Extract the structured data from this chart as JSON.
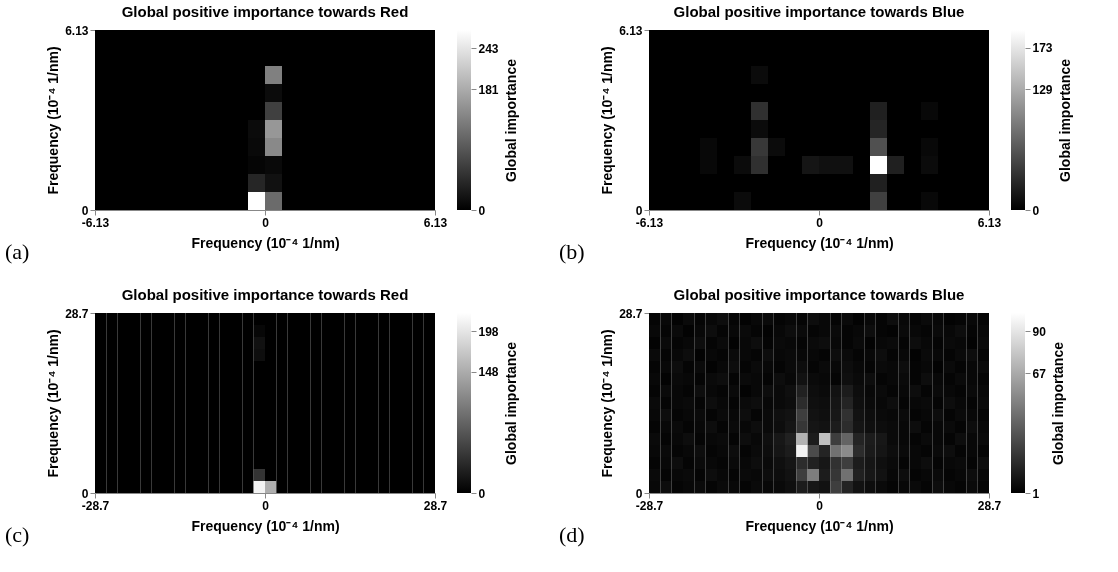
{
  "chart_data": [
    {
      "type": "heatmap",
      "title": "Global positive importance towards Red",
      "xlabel": "Frequency (10⁻⁴ 1/nm)",
      "ylabel": "Frequency (10⁻⁴ 1/nm)",
      "clabel": "Global importance",
      "annotations": [
        "(a)"
      ],
      "xlim": [
        -6.13,
        6.13
      ],
      "xticks": [
        -6.13,
        0,
        6.13
      ],
      "ylim": [
        0,
        6.13
      ],
      "yticks": [
        0,
        6.13
      ],
      "clim": [
        0,
        270
      ],
      "cticks": [
        0,
        181,
        243
      ],
      "x": [
        -5.8235,
        -5.2105,
        -4.5975,
        -3.9845,
        -3.3715,
        -2.7585,
        -2.1455,
        -1.5325,
        -0.9195,
        -0.3065,
        0.3065,
        0.9195,
        1.5325,
        2.1455,
        2.7585,
        3.3715,
        3.9845,
        4.5975,
        5.2105,
        5.8235
      ],
      "y": [
        5.8235,
        5.2105,
        4.5975,
        3.9845,
        3.3715,
        2.7585,
        2.1455,
        1.5325,
        0.9195,
        0.3065
      ],
      "cells": [
        [
          0,
          0,
          0,
          0,
          0,
          0,
          0,
          0,
          0,
          0,
          0,
          0,
          0,
          0,
          0,
          0,
          0,
          0,
          0,
          0
        ],
        [
          0,
          0,
          0,
          0,
          0,
          0,
          0,
          0,
          0,
          0,
          0,
          0,
          0,
          0,
          0,
          0,
          0,
          0,
          0,
          0
        ],
        [
          0,
          0,
          0,
          0,
          0,
          0,
          0,
          0,
          0,
          0,
          135,
          0,
          0,
          0,
          0,
          0,
          0,
          0,
          0,
          0
        ],
        [
          0,
          0,
          0,
          0,
          0,
          0,
          0,
          0,
          0,
          0,
          12,
          0,
          0,
          0,
          0,
          0,
          0,
          0,
          0,
          0
        ],
        [
          0,
          0,
          0,
          0,
          0,
          0,
          0,
          0,
          0,
          0,
          68,
          0,
          0,
          0,
          0,
          0,
          0,
          0,
          0,
          0
        ],
        [
          0,
          0,
          0,
          0,
          0,
          0,
          0,
          0,
          0,
          12,
          160,
          0,
          0,
          0,
          0,
          0,
          0,
          0,
          0,
          0
        ],
        [
          0,
          0,
          0,
          0,
          0,
          0,
          0,
          0,
          0,
          10,
          145,
          0,
          0,
          0,
          0,
          0,
          0,
          0,
          0,
          0
        ],
        [
          0,
          0,
          0,
          0,
          0,
          0,
          0,
          0,
          0,
          5,
          10,
          0,
          0,
          0,
          0,
          0,
          0,
          0,
          0,
          0
        ],
        [
          0,
          0,
          0,
          0,
          0,
          0,
          0,
          0,
          0,
          40,
          18,
          0,
          0,
          0,
          0,
          0,
          0,
          0,
          0,
          0
        ],
        [
          0,
          0,
          0,
          0,
          0,
          0,
          0,
          0,
          0,
          270,
          113,
          0,
          0,
          0,
          0,
          0,
          0,
          0,
          0,
          0
        ]
      ]
    },
    {
      "type": "heatmap",
      "title": "Global positive importance towards Blue",
      "xlabel": "Frequency (10⁻⁴ 1/nm)",
      "ylabel": "Frequency (10⁻⁴ 1/nm)",
      "clabel": "Global importance",
      "annotations": [
        "(b)"
      ],
      "xlim": [
        -6.13,
        6.13
      ],
      "xticks": [
        -6.13,
        0,
        6.13
      ],
      "ylim": [
        0,
        6.13
      ],
      "yticks": [
        0,
        6.13
      ],
      "clim": [
        0,
        192
      ],
      "cticks": [
        0,
        129,
        173
      ],
      "x": [
        -5.8235,
        -5.2105,
        -4.5975,
        -3.9845,
        -3.3715,
        -2.7585,
        -2.1455,
        -1.5325,
        -0.9195,
        -0.3065,
        0.3065,
        0.9195,
        1.5325,
        2.1455,
        2.7585,
        3.3715,
        3.9845,
        4.5975,
        5.2105,
        5.8235
      ],
      "y": [
        5.8235,
        5.2105,
        4.5975,
        3.9845,
        3.3715,
        2.7585,
        2.1455,
        1.5325,
        0.9195,
        0.3065
      ],
      "cells": [
        [
          0,
          0,
          0,
          0,
          0,
          0,
          0,
          0,
          0,
          0,
          0,
          0,
          0,
          0,
          0,
          0,
          0,
          0,
          0,
          0
        ],
        [
          0,
          0,
          0,
          0,
          0,
          0,
          0,
          0,
          0,
          0,
          0,
          0,
          0,
          0,
          0,
          0,
          0,
          0,
          0,
          0
        ],
        [
          0,
          0,
          0,
          0,
          0,
          0,
          8,
          0,
          0,
          0,
          0,
          0,
          0,
          0,
          0,
          0,
          0,
          0,
          0,
          0
        ],
        [
          0,
          0,
          0,
          0,
          0,
          0,
          0,
          0,
          0,
          0,
          0,
          0,
          0,
          0,
          0,
          0,
          0,
          0,
          0,
          0
        ],
        [
          0,
          0,
          0,
          0,
          0,
          0,
          36,
          0,
          0,
          0,
          0,
          0,
          0,
          24,
          0,
          0,
          6,
          0,
          0,
          0
        ],
        [
          0,
          0,
          0,
          0,
          0,
          0,
          8,
          0,
          0,
          0,
          0,
          0,
          0,
          28,
          0,
          0,
          0,
          0,
          0,
          0
        ],
        [
          0,
          0,
          0,
          6,
          0,
          0,
          42,
          8,
          0,
          0,
          0,
          0,
          0,
          60,
          0,
          0,
          6,
          0,
          0,
          0
        ],
        [
          0,
          0,
          0,
          6,
          0,
          8,
          36,
          0,
          0,
          16,
          12,
          12,
          0,
          192,
          24,
          0,
          8,
          0,
          0,
          0
        ],
        [
          0,
          0,
          0,
          0,
          0,
          0,
          0,
          0,
          0,
          0,
          0,
          0,
          0,
          24,
          0,
          0,
          0,
          0,
          0,
          0
        ],
        [
          0,
          0,
          0,
          0,
          0,
          8,
          0,
          0,
          0,
          0,
          0,
          0,
          0,
          48,
          0,
          0,
          6,
          0,
          0,
          0
        ]
      ]
    },
    {
      "type": "heatmap",
      "title": "Global positive importance towards Red",
      "xlabel": "Frequency (10⁻⁴ 1/nm)",
      "ylabel": "Frequency (10⁻⁴ 1/nm)",
      "clabel": "Global importance",
      "annotations": [
        "(c)"
      ],
      "xlim": [
        -28.7,
        28.7
      ],
      "xticks": [
        -28.7,
        0,
        28.7
      ],
      "ylim": [
        0,
        28.7
      ],
      "yticks": [
        0,
        28.7
      ],
      "clim": [
        0,
        220
      ],
      "cticks": [
        0,
        148,
        198
      ],
      "x": [
        -27.743,
        -25.83,
        -23.917,
        -22.003,
        -20.09,
        -18.177,
        -16.263,
        -14.35,
        -12.437,
        -10.523,
        -8.61,
        -6.697,
        -4.783,
        -2.87,
        -0.957,
        0.957,
        2.87,
        4.783,
        6.697,
        8.61,
        10.523,
        12.437,
        14.35,
        16.263,
        18.177,
        20.09,
        22.003,
        23.917,
        25.83,
        27.743
      ],
      "y": [
        27.743,
        25.83,
        23.917,
        22.003,
        20.09,
        18.177,
        16.263,
        14.35,
        12.437,
        10.523,
        8.61,
        6.697,
        4.783,
        2.87,
        0.957
      ],
      "cells": [
        [
          0,
          0,
          0,
          0,
          0,
          0,
          0,
          0,
          0,
          0,
          0,
          0,
          0,
          0,
          0,
          0,
          0,
          0,
          0,
          0,
          0,
          0,
          0,
          0,
          0,
          0,
          0,
          0,
          0,
          0
        ],
        [
          0,
          0,
          0,
          0,
          0,
          0,
          0,
          0,
          0,
          0,
          0,
          0,
          0,
          0,
          6,
          0,
          0,
          0,
          0,
          0,
          0,
          0,
          0,
          0,
          0,
          0,
          0,
          0,
          0,
          0
        ],
        [
          0,
          0,
          0,
          0,
          0,
          0,
          0,
          0,
          0,
          0,
          0,
          0,
          0,
          0,
          15,
          0,
          0,
          0,
          0,
          0,
          0,
          0,
          0,
          0,
          0,
          0,
          0,
          0,
          0,
          0
        ],
        [
          0,
          0,
          0,
          0,
          0,
          0,
          0,
          0,
          0,
          0,
          0,
          0,
          0,
          0,
          12,
          0,
          0,
          0,
          0,
          0,
          0,
          0,
          0,
          0,
          0,
          0,
          0,
          0,
          0,
          0
        ],
        [
          0,
          0,
          0,
          0,
          0,
          0,
          0,
          0,
          0,
          0,
          0,
          0,
          0,
          0,
          0,
          0,
          0,
          0,
          0,
          0,
          0,
          0,
          0,
          0,
          0,
          0,
          0,
          0,
          0,
          0
        ],
        [
          0,
          0,
          0,
          0,
          0,
          0,
          0,
          0,
          0,
          0,
          0,
          0,
          0,
          0,
          0,
          0,
          0,
          0,
          0,
          0,
          0,
          0,
          0,
          0,
          0,
          0,
          0,
          0,
          0,
          0
        ],
        [
          0,
          0,
          0,
          0,
          0,
          0,
          0,
          0,
          0,
          0,
          0,
          0,
          0,
          0,
          0,
          0,
          0,
          0,
          0,
          0,
          0,
          0,
          0,
          0,
          0,
          0,
          0,
          0,
          0,
          0
        ],
        [
          0,
          0,
          0,
          0,
          0,
          0,
          0,
          0,
          0,
          0,
          0,
          0,
          0,
          0,
          0,
          0,
          0,
          0,
          0,
          0,
          0,
          0,
          0,
          0,
          0,
          0,
          0,
          0,
          0,
          0
        ],
        [
          0,
          0,
          0,
          0,
          0,
          0,
          0,
          0,
          0,
          0,
          0,
          0,
          0,
          0,
          0,
          0,
          0,
          0,
          0,
          0,
          0,
          0,
          0,
          0,
          0,
          0,
          0,
          0,
          0,
          0
        ],
        [
          0,
          0,
          0,
          0,
          0,
          0,
          0,
          0,
          0,
          0,
          0,
          0,
          0,
          0,
          0,
          0,
          0,
          0,
          0,
          0,
          0,
          0,
          0,
          0,
          0,
          0,
          0,
          0,
          0,
          0
        ],
        [
          0,
          0,
          0,
          0,
          0,
          0,
          0,
          0,
          0,
          0,
          0,
          0,
          0,
          0,
          0,
          0,
          0,
          0,
          0,
          0,
          0,
          0,
          0,
          0,
          0,
          0,
          0,
          0,
          0,
          0
        ],
        [
          0,
          0,
          0,
          0,
          0,
          0,
          0,
          0,
          0,
          0,
          0,
          0,
          0,
          0,
          0,
          0,
          0,
          0,
          0,
          0,
          0,
          0,
          0,
          0,
          0,
          0,
          0,
          0,
          0,
          0
        ],
        [
          0,
          0,
          0,
          0,
          0,
          0,
          0,
          0,
          0,
          0,
          0,
          0,
          0,
          0,
          0,
          0,
          0,
          0,
          0,
          0,
          0,
          0,
          0,
          0,
          0,
          0,
          0,
          0,
          0,
          0
        ],
        [
          0,
          0,
          0,
          0,
          0,
          0,
          0,
          0,
          0,
          0,
          0,
          0,
          0,
          0,
          45,
          0,
          0,
          0,
          0,
          0,
          0,
          0,
          0,
          0,
          0,
          0,
          0,
          0,
          0,
          0
        ],
        [
          0,
          0,
          0,
          0,
          0,
          0,
          0,
          0,
          0,
          0,
          0,
          0,
          0,
          0,
          210,
          150,
          0,
          0,
          0,
          0,
          0,
          0,
          0,
          0,
          0,
          0,
          0,
          0,
          0,
          0
        ]
      ]
    },
    {
      "type": "heatmap",
      "title": "Global positive importance towards Blue",
      "xlabel": "Frequency (10⁻⁴ 1/nm)",
      "ylabel": "Frequency (10⁻⁴ 1/nm)",
      "clabel": "Global importance",
      "annotations": [
        "(d)"
      ],
      "xlim": [
        -28.7,
        28.7
      ],
      "xticks": [
        -28.7,
        0,
        28.7
      ],
      "ylim": [
        0,
        28.7
      ],
      "yticks": [
        0,
        28.7
      ],
      "clim": [
        1,
        100
      ],
      "cticks": [
        1,
        67,
        90
      ],
      "x": [
        -27.743,
        -25.83,
        -23.917,
        -22.003,
        -20.09,
        -18.177,
        -16.263,
        -14.35,
        -12.437,
        -10.523,
        -8.61,
        -6.697,
        -4.783,
        -2.87,
        -0.957,
        0.957,
        2.87,
        4.783,
        6.697,
        8.61,
        10.523,
        12.437,
        14.35,
        16.263,
        18.177,
        20.09,
        22.003,
        23.917,
        25.83,
        27.743
      ],
      "y": [
        27.743,
        25.83,
        23.917,
        22.003,
        20.09,
        18.177,
        16.263,
        14.35,
        12.437,
        10.523,
        8.61,
        6.697,
        4.783,
        2.87,
        0.957
      ],
      "cells": [
        [
          3,
          4,
          2,
          5,
          3,
          4,
          6,
          3,
          2,
          4,
          5,
          3,
          4,
          3,
          6,
          4,
          3,
          5,
          2,
          4,
          3,
          6,
          4,
          3,
          5,
          4,
          2,
          3,
          4,
          3
        ],
        [
          4,
          3,
          5,
          2,
          4,
          6,
          3,
          4,
          5,
          3,
          2,
          4,
          6,
          5,
          3,
          4,
          5,
          3,
          4,
          6,
          3,
          2,
          5,
          4,
          3,
          5,
          4,
          6,
          3,
          4
        ],
        [
          2,
          5,
          3,
          4,
          6,
          3,
          5,
          2,
          4,
          6,
          3,
          5,
          4,
          3,
          5,
          6,
          4,
          3,
          5,
          2,
          4,
          5,
          3,
          6,
          4,
          3,
          5,
          4,
          2,
          5
        ],
        [
          5,
          3,
          4,
          6,
          2,
          4,
          3,
          5,
          4,
          3,
          6,
          4,
          5,
          4,
          4,
          3,
          6,
          5,
          3,
          4,
          6,
          3,
          4,
          2,
          5,
          4,
          3,
          5,
          6,
          3
        ],
        [
          3,
          4,
          6,
          3,
          5,
          2,
          4,
          6,
          3,
          5,
          4,
          3,
          5,
          6,
          3,
          5,
          4,
          6,
          4,
          3,
          5,
          4,
          6,
          3,
          4,
          2,
          5,
          3,
          4,
          5
        ],
        [
          4,
          2,
          5,
          4,
          3,
          5,
          6,
          3,
          5,
          4,
          3,
          6,
          4,
          8,
          5,
          4,
          3,
          7,
          5,
          6,
          3,
          4,
          5,
          3,
          6,
          4,
          3,
          5,
          4,
          3
        ],
        [
          3,
          5,
          4,
          3,
          6,
          4,
          3,
          5,
          2,
          4,
          6,
          5,
          7,
          14,
          6,
          5,
          8,
          12,
          6,
          4,
          5,
          3,
          4,
          6,
          3,
          5,
          4,
          3,
          5,
          4
        ],
        [
          5,
          3,
          4,
          5,
          3,
          6,
          4,
          3,
          5,
          6,
          4,
          5,
          6,
          18,
          7,
          6,
          9,
          15,
          7,
          5,
          4,
          6,
          3,
          4,
          5,
          3,
          6,
          4,
          3,
          5
        ],
        [
          4,
          6,
          3,
          4,
          5,
          3,
          5,
          4,
          6,
          3,
          5,
          7,
          8,
          25,
          8,
          7,
          10,
          20,
          8,
          6,
          5,
          4,
          5,
          3,
          4,
          6,
          3,
          5,
          4,
          3
        ],
        [
          3,
          4,
          5,
          3,
          4,
          6,
          3,
          5,
          4,
          6,
          5,
          6,
          9,
          22,
          9,
          8,
          12,
          18,
          9,
          7,
          6,
          5,
          4,
          6,
          3,
          4,
          5,
          3,
          6,
          4
        ],
        [
          5,
          3,
          4,
          6,
          3,
          4,
          5,
          3,
          6,
          4,
          7,
          10,
          14,
          70,
          12,
          75,
          25,
          40,
          15,
          12,
          10,
          5,
          4,
          3,
          5,
          4,
          3,
          6,
          4,
          5
        ],
        [
          4,
          5,
          3,
          4,
          6,
          3,
          4,
          6,
          3,
          5,
          6,
          9,
          12,
          95,
          30,
          15,
          45,
          55,
          18,
          11,
          9,
          6,
          5,
          4,
          3,
          5,
          6,
          3,
          4,
          3
        ],
        [
          3,
          4,
          6,
          3,
          5,
          4,
          3,
          5,
          4,
          6,
          5,
          7,
          9,
          18,
          14,
          10,
          20,
          25,
          12,
          9,
          7,
          5,
          3,
          4,
          6,
          3,
          4,
          5,
          3,
          6
        ],
        [
          5,
          3,
          4,
          5,
          3,
          6,
          4,
          3,
          5,
          4,
          6,
          6,
          8,
          25,
          50,
          12,
          22,
          45,
          14,
          10,
          8,
          4,
          6,
          3,
          4,
          5,
          3,
          4,
          6,
          4
        ],
        [
          4,
          6,
          3,
          4,
          5,
          3,
          5,
          4,
          3,
          5,
          4,
          5,
          7,
          12,
          10,
          8,
          25,
          15,
          8,
          6,
          5,
          3,
          4,
          5,
          3,
          6,
          4,
          3,
          5,
          3
        ]
      ]
    }
  ]
}
